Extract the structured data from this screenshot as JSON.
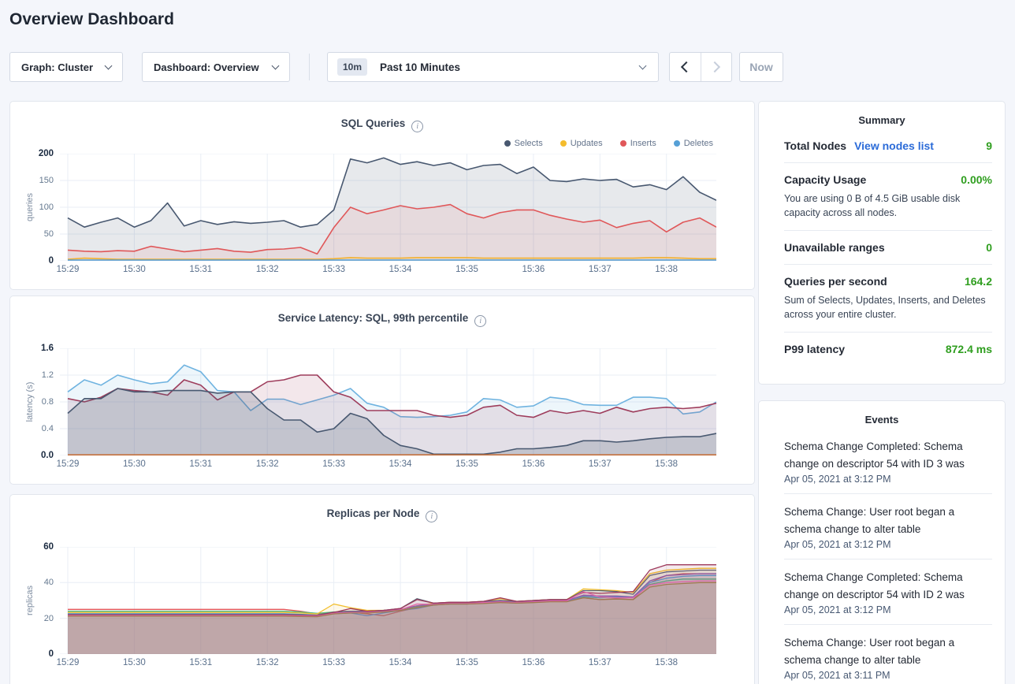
{
  "page": {
    "title": "Overview Dashboard"
  },
  "toolbar": {
    "graph_dropdown": "Graph: Cluster",
    "dashboard_dropdown": "Dashboard: Overview",
    "time_badge": "10m",
    "time_label": "Past 10 Minutes",
    "now_button": "Now",
    "icons": {
      "dropdown_caret": "chevron-down",
      "prev": "chevron-left",
      "next": "chevron-right"
    }
  },
  "summary": {
    "title": "Summary",
    "rows": [
      {
        "label": "Total Nodes",
        "link": "View nodes list",
        "value": "9",
        "sub": ""
      },
      {
        "label": "Capacity Usage",
        "link": "",
        "value": "0.00%",
        "sub": "You are using 0 B of 4.5 GiB usable disk capacity across all nodes."
      },
      {
        "label": "Unavailable ranges",
        "link": "",
        "value": "0",
        "sub": ""
      },
      {
        "label": "Queries per second",
        "link": "",
        "value": "164.2",
        "sub": "Sum of Selects, Updates, Inserts, and Deletes across your entire cluster."
      },
      {
        "label": "P99 latency",
        "link": "",
        "value": "872.4 ms",
        "sub": ""
      }
    ]
  },
  "events": {
    "title": "Events",
    "items": [
      {
        "text": "Schema Change Completed: Schema change on descriptor 54 with ID 3 was",
        "time": "Apr 05, 2021 at 3:12 PM"
      },
      {
        "text": "Schema Change: User root began a schema change to alter table",
        "time": "Apr 05, 2021 at 3:12 PM"
      },
      {
        "text": "Schema Change Completed: Schema change on descriptor 54 with ID 2 was",
        "time": "Apr 05, 2021 at 3:12 PM"
      },
      {
        "text": "Schema Change: User root began a schema change to alter table",
        "time": "Apr 05, 2021 at 3:11 PM"
      }
    ]
  },
  "chart_data": [
    {
      "type": "area",
      "title": "SQL Queries",
      "ylabel": "queries",
      "ylim": [
        0,
        200
      ],
      "yticks": [
        0,
        50,
        100,
        150,
        200
      ],
      "ytick_labels": [
        "0",
        "50",
        "100",
        "150",
        "200"
      ],
      "x_labels": [
        "15:29",
        "15:30",
        "15:31",
        "15:32",
        "15:33",
        "15:34",
        "15:35",
        "15:36",
        "15:37",
        "15:38"
      ],
      "grid": true,
      "legend": true,
      "legend_position": "top-right",
      "stroke": 1.6,
      "series": [
        {
          "name": "Selects",
          "color": "#485870",
          "fill_opacity": 0.13,
          "values": [
            80,
            63,
            72,
            80,
            63,
            75,
            108,
            65,
            75,
            68,
            73,
            70,
            72,
            75,
            63,
            68,
            95,
            190,
            183,
            192,
            180,
            185,
            178,
            183,
            170,
            178,
            180,
            163,
            175,
            150,
            148,
            153,
            150,
            152,
            138,
            142,
            133,
            157,
            128,
            113
          ]
        },
        {
          "name": "Updates",
          "color": "#f4bc2d",
          "fill_opacity": 0.08,
          "values": [
            3,
            5,
            4,
            3,
            3,
            3,
            3,
            3,
            3,
            3,
            3,
            3,
            3,
            3,
            3,
            3,
            4,
            6,
            5,
            5,
            5,
            6,
            6,
            6,
            6,
            5,
            5,
            5,
            5,
            5,
            5,
            5,
            5,
            5,
            5,
            6,
            6,
            5,
            4,
            4
          ]
        },
        {
          "name": "Inserts",
          "color": "#e05759",
          "fill_opacity": 0.1,
          "values": [
            20,
            18,
            17,
            19,
            18,
            27,
            22,
            17,
            20,
            23,
            18,
            16,
            21,
            22,
            25,
            13,
            62,
            100,
            88,
            95,
            103,
            97,
            100,
            105,
            88,
            80,
            90,
            95,
            95,
            85,
            78,
            72,
            76,
            62,
            70,
            75,
            54,
            72,
            80,
            63
          ]
        },
        {
          "name": "Deletes",
          "color": "#56a0d6",
          "fill_opacity": 0.08,
          "values": [
            1.5,
            1.5,
            1.5,
            1.5,
            1.5,
            1.5,
            1.5,
            1.5,
            1.5,
            1.5,
            1.5,
            1.5,
            1.5,
            1.5,
            1.5,
            1.5,
            1.5,
            1.5,
            1.5,
            1.5,
            1.5,
            1.5,
            1.5,
            1.5,
            1.5,
            1.5,
            1.5,
            1.5,
            1.5,
            1.5,
            1.5,
            1.5,
            1.5,
            1.5,
            1.5,
            1.5,
            1.5,
            1.5,
            1.5,
            1.5
          ]
        }
      ]
    },
    {
      "type": "area",
      "title": "Service Latency: SQL, 99th percentile",
      "ylabel": "latency (s)",
      "ylim": [
        0,
        1.6
      ],
      "yticks": [
        0,
        0.4,
        0.8,
        1.2,
        1.6
      ],
      "ytick_labels": [
        "0.0",
        "0.4",
        "0.8",
        "1.2",
        "1.6"
      ],
      "x_labels": [
        "15:29",
        "15:30",
        "15:31",
        "15:32",
        "15:33",
        "15:34",
        "15:35",
        "15:36",
        "15:37",
        "15:38"
      ],
      "grid": true,
      "legend": false,
      "stroke": 1.6,
      "series": [
        {
          "name": "",
          "color": "#6fb3e0",
          "fill_opacity": 0.12,
          "values": [
            0.95,
            1.13,
            1.05,
            1.2,
            1.13,
            1.07,
            1.1,
            1.35,
            1.25,
            0.97,
            0.95,
            0.67,
            0.84,
            0.84,
            0.76,
            0.83,
            0.9,
            1.0,
            0.78,
            0.72,
            0.58,
            0.57,
            0.58,
            0.6,
            0.65,
            0.85,
            0.83,
            0.72,
            0.74,
            0.87,
            0.84,
            0.76,
            0.75,
            0.75,
            0.87,
            0.87,
            0.85,
            0.62,
            0.65,
            0.8
          ]
        },
        {
          "name": "",
          "color": "#9e3d5c",
          "fill_opacity": 0.12,
          "values": [
            0.85,
            0.8,
            0.87,
            1.0,
            0.97,
            0.95,
            0.9,
            1.13,
            1.05,
            0.83,
            0.95,
            0.95,
            1.1,
            1.13,
            1.2,
            1.2,
            0.95,
            0.87,
            0.67,
            0.67,
            0.67,
            0.67,
            0.6,
            0.57,
            0.6,
            0.72,
            0.75,
            0.6,
            0.57,
            0.67,
            0.63,
            0.67,
            0.63,
            0.72,
            0.65,
            0.7,
            0.72,
            0.7,
            0.72,
            0.78
          ]
        },
        {
          "name": "",
          "color": "#485870",
          "fill_opacity": 0.2,
          "values": [
            0.63,
            0.85,
            0.85,
            1.0,
            0.95,
            0.95,
            0.97,
            0.97,
            0.97,
            0.93,
            0.95,
            0.95,
            0.7,
            0.53,
            0.53,
            0.35,
            0.4,
            0.63,
            0.55,
            0.3,
            0.15,
            0.1,
            0.02,
            0.02,
            0.02,
            0.02,
            0.05,
            0.1,
            0.1,
            0.12,
            0.15,
            0.22,
            0.22,
            0.2,
            0.22,
            0.25,
            0.27,
            0.28,
            0.28,
            0.33
          ]
        },
        {
          "name": "",
          "color": "#c4703d",
          "fill_opacity": 0,
          "values": [
            0.01,
            0.01,
            0.01,
            0.01,
            0.01,
            0.01,
            0.01,
            0.01,
            0.01,
            0.01,
            0.01,
            0.01,
            0.01,
            0.01,
            0.01,
            0.01,
            0.01,
            0.01,
            0.01,
            0.01,
            0.01,
            0.01,
            0.01,
            0.01,
            0.01,
            0.01,
            0.01,
            0.01,
            0.01,
            0.01,
            0.01,
            0.01,
            0.01,
            0.01,
            0.01,
            0.01,
            0.01,
            0.01,
            0.01,
            0.01
          ]
        }
      ]
    },
    {
      "type": "area",
      "title": "Replicas per Node",
      "ylabel": "replicas",
      "ylim": [
        0,
        60
      ],
      "yticks": [
        0,
        20,
        40,
        60
      ],
      "ytick_labels": [
        "0",
        "20",
        "40",
        "60"
      ],
      "x_labels": [
        "15:29",
        "15:30",
        "15:31",
        "15:32",
        "15:33",
        "15:34",
        "15:35",
        "15:36",
        "15:37",
        "15:38"
      ],
      "grid": true,
      "legend": false,
      "stroke": 1.3,
      "series": [
        {
          "name": "",
          "color": "#e05759",
          "fill_opacity": 0.1,
          "values": [
            25,
            25,
            25,
            25,
            25,
            25,
            25,
            25,
            25,
            25,
            25,
            25,
            25,
            25,
            24,
            22.5,
            23,
            23.5,
            22.5,
            21.5,
            24,
            26,
            27.5,
            28,
            28,
            28.5,
            29,
            28.5,
            29,
            29.5,
            29.5,
            31.5,
            30.5,
            31,
            30.5,
            40,
            44,
            45,
            45,
            45
          ]
        },
        {
          "name": "",
          "color": "#47b881",
          "fill_opacity": 0.1,
          "values": [
            24,
            24,
            24,
            24,
            24,
            24,
            24,
            24,
            24,
            24,
            24,
            24,
            24,
            24,
            23.5,
            22.8,
            23.5,
            24,
            24,
            24.5,
            25,
            26.5,
            28,
            28.5,
            28.5,
            29,
            29.5,
            29,
            29.5,
            30,
            30,
            32,
            31.5,
            32,
            31.5,
            39,
            41,
            42,
            42,
            42
          ]
        },
        {
          "name": "",
          "color": "#f2be2c",
          "fill_opacity": 0.1,
          "values": [
            23.3,
            23.3,
            23.3,
            23.3,
            23.3,
            23.3,
            23.3,
            23.3,
            23.3,
            23.3,
            23.3,
            23.3,
            23.3,
            23.3,
            23,
            22.5,
            28,
            26,
            24.5,
            24.5,
            25,
            27,
            28.5,
            29,
            29,
            29.5,
            31,
            29.5,
            30,
            30.5,
            30.5,
            36.5,
            36,
            35.5,
            34.5,
            45,
            47,
            47.5,
            48,
            48
          ]
        },
        {
          "name": "",
          "color": "#5ba3d8",
          "fill_opacity": 0.1,
          "values": [
            22.6,
            22.6,
            22.6,
            22.6,
            22.6,
            22.6,
            22.6,
            22.6,
            22.6,
            22.6,
            22.6,
            22.6,
            22.6,
            22.6,
            22.3,
            21.8,
            22.5,
            23,
            21.5,
            23,
            24.5,
            25.5,
            27.5,
            28,
            28,
            28.5,
            29,
            28.5,
            29,
            29.5,
            29.5,
            32.5,
            31.7,
            32,
            31.5,
            40,
            42.5,
            43.5,
            44,
            44
          ]
        },
        {
          "name": "",
          "color": "#5a6474",
          "fill_opacity": 0.1,
          "values": [
            22.3,
            22.3,
            22.3,
            22.3,
            22.3,
            22.3,
            22.3,
            22.3,
            22.3,
            22.3,
            22.3,
            22.3,
            22.3,
            22.3,
            22,
            21.8,
            23.5,
            24,
            24,
            24.5,
            25.5,
            31,
            28.5,
            29,
            29,
            29.5,
            30,
            29.5,
            30,
            30.5,
            30.5,
            35.5,
            35.5,
            35,
            33.5,
            44,
            46,
            46.5,
            47,
            47
          ]
        },
        {
          "name": "",
          "color": "#8b5fb0",
          "fill_opacity": 0.1,
          "values": [
            22,
            22,
            22,
            22,
            22,
            22,
            22,
            22,
            22,
            22,
            22,
            22,
            22,
            22,
            21.8,
            21.6,
            23,
            23.5,
            23.5,
            24,
            25,
            27,
            28,
            28.5,
            28.5,
            29,
            29.5,
            29,
            29.5,
            30,
            30,
            33,
            32.5,
            32.5,
            32,
            41,
            44,
            44.5,
            45,
            45
          ]
        },
        {
          "name": "",
          "color": "#9e3a5c",
          "fill_opacity": 0.1,
          "values": [
            21.9,
            21.9,
            21.9,
            21.9,
            21.9,
            21.9,
            21.9,
            21.9,
            21.9,
            21.9,
            21.9,
            21.9,
            21.9,
            21.9,
            21.7,
            21.5,
            23.3,
            25.5,
            24,
            24.5,
            25.5,
            30.5,
            28.5,
            29,
            29,
            29.5,
            31.5,
            29.5,
            30,
            30.5,
            30.5,
            34.5,
            34,
            34.5,
            35,
            47,
            50,
            50,
            50,
            50
          ]
        },
        {
          "name": "",
          "color": "#e068a8",
          "fill_opacity": 0.1,
          "values": [
            21.6,
            21.6,
            21.6,
            21.6,
            21.6,
            21.6,
            21.6,
            21.6,
            21.6,
            21.6,
            21.6,
            21.6,
            21.6,
            21.6,
            21.4,
            21.2,
            22.8,
            23.3,
            23.3,
            23.8,
            24.8,
            28,
            27.8,
            28.3,
            28.3,
            28.8,
            29.2,
            28.8,
            29.2,
            29.8,
            29.8,
            35,
            32,
            31.5,
            31.5,
            38.5,
            40,
            40.5,
            41,
            41
          ]
        },
        {
          "name": "",
          "color": "#a07850",
          "fill_opacity": 0.12,
          "values": [
            21.2,
            21.2,
            21.2,
            21.2,
            21.2,
            21.2,
            21.2,
            21.2,
            21.2,
            21.2,
            21.2,
            21.2,
            21.2,
            21.2,
            21,
            20.9,
            22.5,
            23,
            23,
            23.5,
            24.5,
            26,
            27.5,
            28,
            28,
            28.3,
            28.8,
            28.5,
            28.8,
            29.3,
            29.3,
            31.5,
            30.5,
            30.8,
            30.5,
            37.5,
            39,
            39.5,
            40,
            40
          ]
        }
      ]
    }
  ]
}
